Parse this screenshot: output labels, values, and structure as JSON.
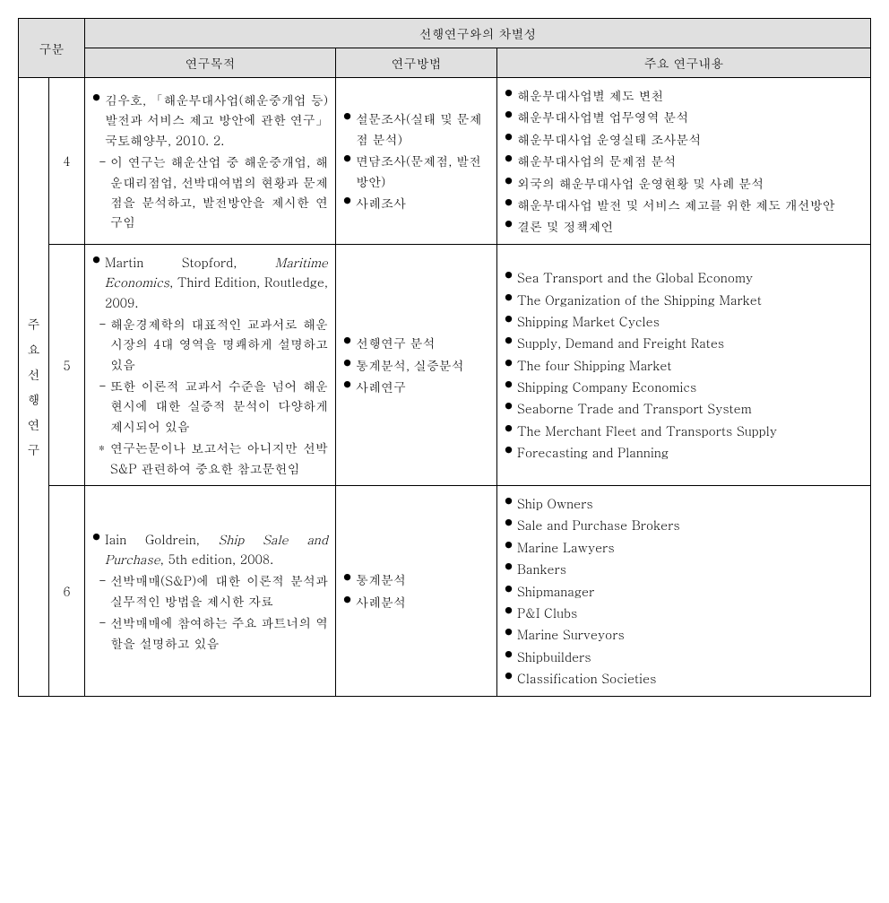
{
  "headers": {
    "gubun": "구분",
    "diff": "선행연구와의 차별성",
    "purpose": "연구목적",
    "method": "연구방법",
    "content": "주요 연구내용"
  },
  "category_label": "주요 선행연구",
  "rows": [
    {
      "num": "4",
      "purpose": {
        "main": "김우호, 「해운부대사업(해운중개업 등) 발전과 서비스 제고 방안에 관한 연구」 국토해양부, 2010. 2.",
        "subs": [
          "이 연구는 해운산업 중 해운중개업, 해운대리점업, 선박대여법의 현황과 문제점을 분석하고, 발전방안을 제시한 연구임"
        ]
      },
      "method": [
        "설문조사(실태 및 문제점 분석)",
        "면담조사(문제점, 발전방안)",
        "사례조사"
      ],
      "content": [
        "해운부대사업별 제도 변천",
        "해운부대사업별 업무영역 분석",
        "해운부대사업 운영실태 조사분석",
        "해운부대사업의 문제점 분석",
        "외국의 해운부대사업 운영현황 및 사례 분석",
        "해운부대사업 발전 및 서비스 제고를 위한 제도 개선방안",
        "결론 및 정책제언"
      ]
    },
    {
      "num": "5",
      "purpose": {
        "main_pre": "Martin Stopford, ",
        "main_italic": "Maritime Economics",
        "main_post": ", Third Edition, Routledge, 2009.",
        "subs": [
          "해운경제학의 대표적인 교과서로 해운시장의 4대 영역을 명쾌하게 설명하고 있음",
          "또한 이론적 교과서 수준을 넘어 해운 현시에 대한 실증적 분석이 다양하게 제시되어 있음"
        ],
        "star": "연구논문이나 보고서는 아니지만 선박 S&P 관련하여 중요한 참고문헌임"
      },
      "method": [
        "선행연구 분석",
        "통계분석, 실증분석",
        "사례연구"
      ],
      "content": [
        "Sea Transport and the Global Economy",
        "The Organization of the Shipping Market",
        "Shipping Market Cycles",
        "Supply, Demand and Freight Rates",
        "The four Shipping Market",
        "Shipping Company Economics",
        "Seaborne Trade and Transport System",
        "The Merchant Fleet and Transports Supply",
        "Forecasting and Planning"
      ]
    },
    {
      "num": "6",
      "purpose": {
        "main_pre": "Iain Goldrein, ",
        "main_italic": "Ship Sale and Purchase",
        "main_post": ", 5th edition, 2008.",
        "subs": [
          "선박매매(S&P)에 대한 이론적 분석과 실무적인 방법을 제시한 자료",
          "선박매매에 참여하는 주요 파트너의 역할을 설명하고 있음"
        ]
      },
      "method": [
        "통계분석",
        "사례분석"
      ],
      "content": [
        "Ship Owners",
        "Sale and Purchase Brokers",
        "Marine Lawyers",
        "Bankers",
        "Shipmanager",
        "P&I Clubs",
        "Marine Surveyors",
        "Shipbuilders",
        "Classification Societies"
      ]
    }
  ]
}
